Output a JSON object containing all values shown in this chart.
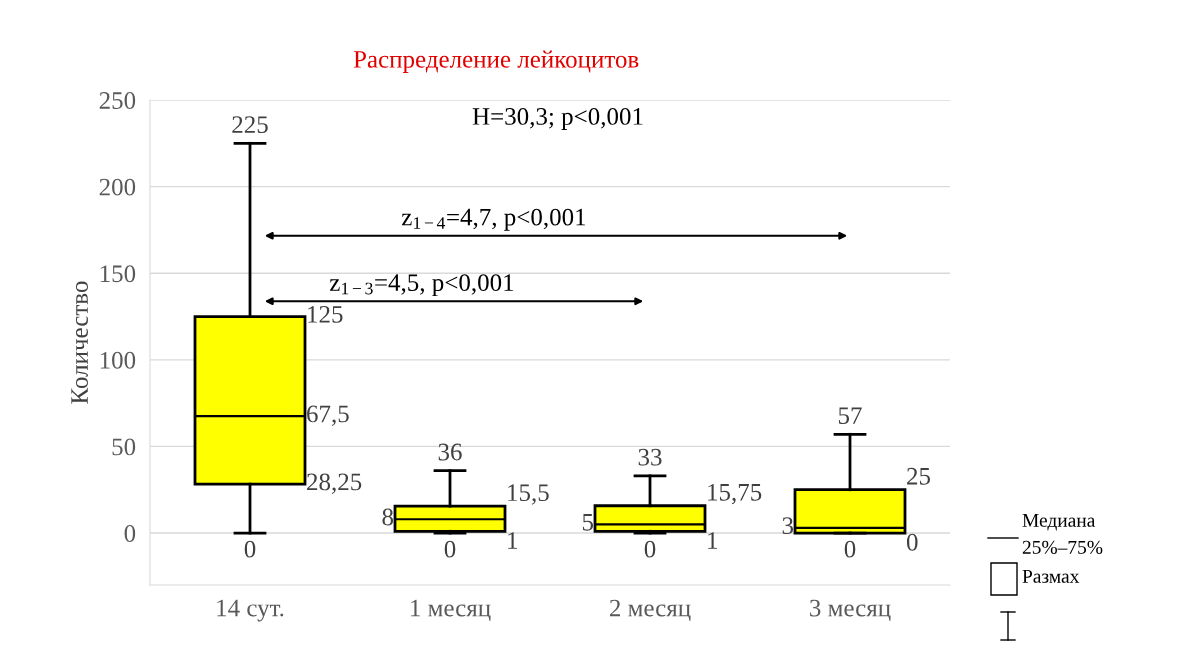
{
  "chart_data": {
    "type": "box",
    "title": "Распределение лейкоцитов",
    "ylabel": "Количество",
    "categories": [
      "14 сут.",
      "1 месяц",
      "2 месяц",
      "3 месяц"
    ],
    "series": [
      {
        "color": "#ffff00",
        "boxes": [
          {
            "low": 0,
            "q1": 28.25,
            "median": 67.5,
            "q3": 125,
            "high": 225
          },
          {
            "low": 0,
            "q1": 1,
            "median": 8,
            "q3": 15.5,
            "high": 36
          },
          {
            "low": 0,
            "q1": 1,
            "median": 5,
            "q3": 15.75,
            "high": 33
          },
          {
            "low": 0,
            "q1": 0,
            "median": 3,
            "q3": 25,
            "high": 57
          }
        ],
        "value_labels": [
          [
            "0",
            "28,25",
            "67,5",
            "125",
            "225"
          ],
          [
            "0",
            "1",
            "8",
            "15,5",
            "36"
          ],
          [
            "0",
            "1",
            "5",
            "15,75",
            "33"
          ],
          [
            "0",
            "0",
            "3",
            "25",
            "57"
          ]
        ]
      }
    ],
    "ylim": [
      -30,
      250
    ],
    "yticks": [
      0,
      50,
      100,
      150,
      200,
      250
    ],
    "grid": "y",
    "annotations": [
      "H=30,3; p<0,001",
      "z$_{1−4}$=4,7, p<0,001",
      "z$_{1−3}$=4,5, p<0,001",
      "Медиана",
      "25%–75%",
      "Размах"
    ]
  }
}
